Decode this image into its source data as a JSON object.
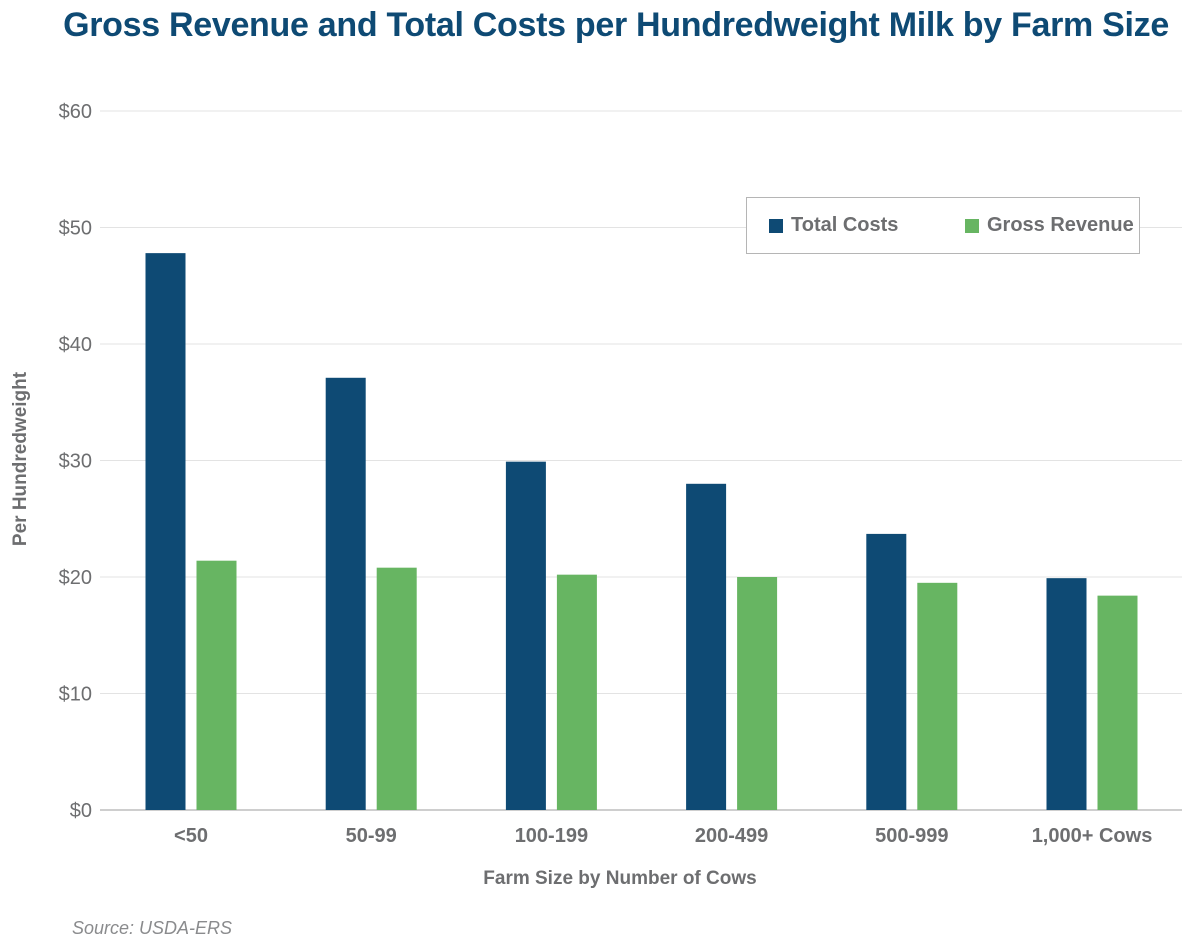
{
  "chart_data": {
    "type": "bar",
    "title": "Gross Revenue and Total Costs per Hundredweight Milk by Farm Size",
    "xlabel": "Farm Size by Number of Cows",
    "ylabel": "Per Hundredweight",
    "ylim": [
      0,
      60
    ],
    "yticks": [
      0,
      10,
      20,
      30,
      40,
      50,
      60
    ],
    "ytick_labels": [
      "$0",
      "$10",
      "$20",
      "$30",
      "$40",
      "$50",
      "$60"
    ],
    "grid": true,
    "legend_position": "top-right",
    "categories": [
      "<50",
      "50-99",
      "100-199",
      "200-499",
      "500-999",
      "1,000+ Cows"
    ],
    "series": [
      {
        "name": "Total Costs",
        "color": "#0e4a74",
        "values": [
          47.8,
          37.1,
          29.9,
          28.0,
          23.7,
          19.9
        ]
      },
      {
        "name": "Gross Revenue",
        "color": "#67b562",
        "values": [
          21.4,
          20.8,
          20.2,
          20.0,
          19.5,
          18.4
        ]
      }
    ]
  },
  "source": "Source: USDA-ERS"
}
